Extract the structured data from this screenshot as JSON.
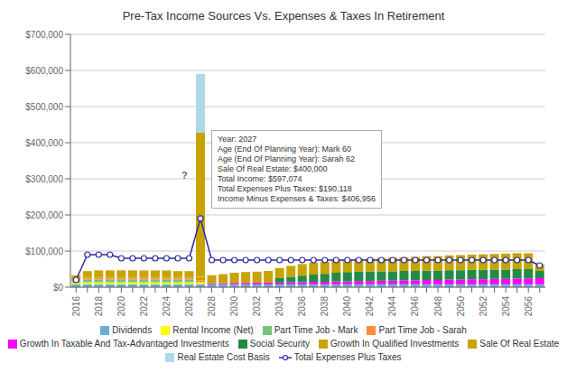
{
  "chart_data": {
    "type": "bar",
    "title": "Pre-Tax Income Sources Vs. Expenses & Taxes In Retirement",
    "stacked": true,
    "grid": true,
    "legend": "bottom",
    "categories": [
      "2016",
      null,
      "2018",
      null,
      "2020",
      null,
      "2022",
      null,
      "2024",
      null,
      "2026",
      null,
      "2028",
      null,
      "2030",
      null,
      "2032",
      null,
      "2034",
      null,
      "2036",
      null,
      "2038",
      null,
      "2040",
      null,
      "2042",
      null,
      "2044",
      null,
      "2046",
      null,
      "2048",
      null,
      "2050",
      null,
      "2052",
      null,
      "2054",
      null,
      "2056",
      null
    ],
    "series": [
      {
        "name": "Dividends",
        "color": "#6baed6",
        "values": [
          8000,
          8000,
          8000,
          8000,
          8000,
          8000,
          8000,
          8000,
          8000,
          8000,
          8000,
          8000,
          8000,
          8000,
          8000,
          8000,
          8000,
          8000,
          8000,
          8000,
          8000,
          8000,
          8000,
          8000,
          8000,
          8000,
          8000,
          8000,
          8000,
          8000,
          8000,
          8000,
          8000,
          8000,
          8000,
          8000,
          8000,
          8000,
          8000,
          8000,
          8000,
          8000
        ]
      },
      {
        "name": "Rental Income (Net)",
        "color": "#ffff00",
        "values": [
          5000,
          5500,
          5500,
          5500,
          5500,
          5500,
          5500,
          5500,
          5500,
          5500,
          5500,
          5500,
          0,
          0,
          0,
          0,
          0,
          0,
          0,
          0,
          0,
          0,
          0,
          0,
          0,
          0,
          0,
          0,
          0,
          0,
          0,
          0,
          0,
          0,
          0,
          0,
          0,
          0,
          0,
          0,
          0,
          0
        ]
      },
      {
        "name": "Part Time Job - Mark",
        "color": "#74c476",
        "values": [
          3000,
          8000,
          8000,
          8000,
          8000,
          8000,
          8000,
          8000,
          8000,
          8000,
          8000,
          0,
          0,
          0,
          0,
          0,
          0,
          0,
          0,
          0,
          0,
          0,
          0,
          0,
          0,
          0,
          0,
          0,
          0,
          0,
          0,
          0,
          0,
          0,
          0,
          0,
          0,
          0,
          0,
          0,
          0,
          0
        ]
      },
      {
        "name": "Part Time Job - Sarah",
        "color": "#fd8d3c",
        "values": [
          2000,
          5000,
          5000,
          5000,
          5000,
          5000,
          5000,
          5000,
          5000,
          5000,
          5000,
          5000,
          0,
          0,
          0,
          0,
          0,
          0,
          0,
          0,
          0,
          0,
          0,
          0,
          0,
          0,
          0,
          0,
          0,
          0,
          0,
          0,
          0,
          0,
          0,
          0,
          0,
          0,
          0,
          0,
          0,
          0
        ]
      },
      {
        "name": "Growth In Taxable And Tax-Advantaged Investments",
        "color": "#ff00ff",
        "values": [
          0,
          0,
          0,
          0,
          0,
          0,
          0,
          0,
          0,
          0,
          0,
          0,
          3000,
          3000,
          4000,
          4000,
          5000,
          5000,
          5000,
          6000,
          6000,
          7000,
          7000,
          8000,
          8000,
          9000,
          9000,
          10000,
          10000,
          11000,
          11000,
          12000,
          12000,
          13000,
          13000,
          14000,
          14000,
          15000,
          15000,
          16000,
          16000,
          17000
        ]
      },
      {
        "name": "Social Security",
        "color": "#238b45",
        "values": [
          0,
          0,
          0,
          0,
          0,
          0,
          0,
          0,
          0,
          0,
          0,
          0,
          0,
          0,
          0,
          0,
          0,
          0,
          12000,
          15000,
          18000,
          20000,
          22000,
          24000,
          26000,
          26000,
          26000,
          26000,
          26000,
          26000,
          26000,
          26000,
          26000,
          26000,
          26000,
          26000,
          26000,
          26000,
          26000,
          26000,
          26000,
          20000
        ]
      },
      {
        "name": "Growth In Qualified Investments",
        "color": "#c8a400",
        "values": [
          15000,
          18000,
          20000,
          20000,
          20000,
          20000,
          20000,
          20000,
          20000,
          18000,
          18000,
          10000,
          22000,
          25000,
          28000,
          30000,
          30000,
          32000,
          28000,
          30000,
          32000,
          33000,
          33000,
          34000,
          35000,
          36000,
          36000,
          37000,
          38000,
          38000,
          39000,
          40000,
          40000,
          41000,
          42000,
          42000,
          43000,
          43000,
          44000,
          44000,
          44000,
          18000
        ]
      },
      {
        "name": "Sale Of Real Estate",
        "color": "#c8a400",
        "values": [
          0,
          0,
          0,
          0,
          0,
          0,
          0,
          0,
          0,
          0,
          0,
          400000,
          0,
          0,
          0,
          0,
          0,
          0,
          0,
          0,
          0,
          0,
          0,
          0,
          0,
          0,
          0,
          0,
          0,
          0,
          0,
          0,
          0,
          0,
          0,
          0,
          0,
          0,
          0,
          0,
          0,
          0
        ]
      },
      {
        "name": "Real Estate Cost Basis",
        "color": "#add8e6",
        "values": [
          0,
          0,
          0,
          0,
          0,
          0,
          0,
          0,
          0,
          0,
          0,
          162000,
          0,
          0,
          0,
          0,
          0,
          0,
          0,
          0,
          0,
          0,
          0,
          0,
          0,
          0,
          0,
          0,
          0,
          0,
          0,
          0,
          0,
          0,
          0,
          0,
          0,
          0,
          0,
          0,
          0,
          0
        ]
      },
      {
        "name": "Total Expenses Plus Taxes",
        "type": "line",
        "marker": "circle",
        "color": "#2c2c9e",
        "values": [
          20000,
          90000,
          90000,
          90000,
          80000,
          80000,
          80000,
          80000,
          80000,
          80000,
          80000,
          190118,
          75000,
          75000,
          75000,
          75000,
          75000,
          75000,
          75000,
          75000,
          75000,
          75000,
          75000,
          75000,
          75000,
          75000,
          75000,
          75000,
          75000,
          75000,
          75000,
          75000,
          75000,
          75000,
          75000,
          75000,
          75000,
          75000,
          75000,
          75000,
          75000,
          60000
        ]
      }
    ],
    "ylim": [
      0,
      700000
    ],
    "yticks": [
      {
        "value": 0,
        "label": "$0"
      },
      {
        "value": 100000,
        "label": "$100,000"
      },
      {
        "value": 200000,
        "label": "$200,000"
      },
      {
        "value": 300000,
        "label": "$300,000"
      },
      {
        "value": 400000,
        "label": "$400,000"
      },
      {
        "value": 500000,
        "label": "$500,000"
      },
      {
        "value": 600000,
        "label": "$600,000"
      },
      {
        "value": 700000,
        "label": "$700,000"
      }
    ],
    "annotations": [
      "Year: 2027\nAge (End Of Planning Year): Mark 60\nAge (End Of Planning Year): Sarah 62\nSale Of Real Estate: $400,000\nTotal Income: $597,074\nTotal Expenses Plus Taxes: $190,118\nIncome Minus Expenses & Taxes: $406,956",
      "?"
    ]
  }
}
